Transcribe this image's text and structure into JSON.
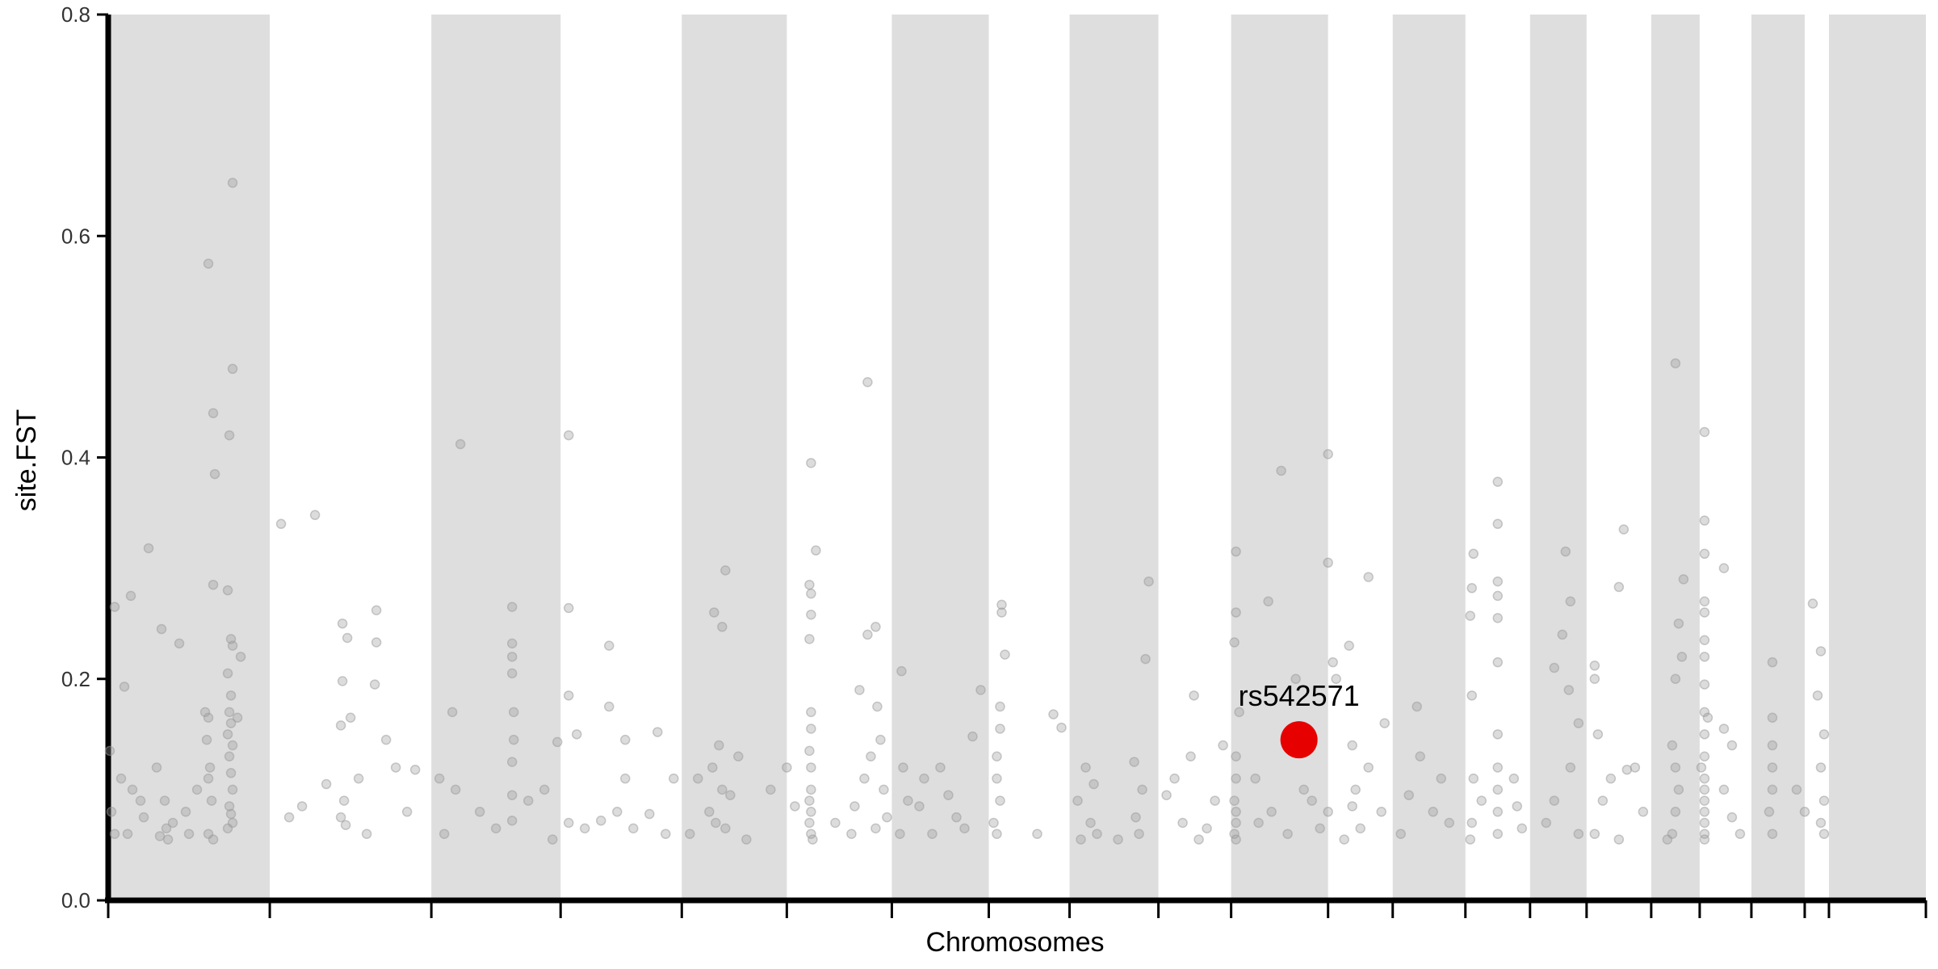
{
  "chart_data": {
    "type": "scatter",
    "title": "",
    "xlabel": "Chromosomes",
    "ylabel": "site.FST",
    "ylim": [
      0,
      0.8
    ],
    "yticks": [
      0.0,
      0.2,
      0.4,
      0.6,
      0.8
    ],
    "ytick_labels": [
      "0.0",
      "0.2",
      "0.4",
      "0.6",
      "0.8"
    ],
    "x_tick_labels_visible": false,
    "chromosome_band_colors": [
      "#dedede",
      "#ffffff"
    ],
    "point_color": "#9a9a9a",
    "point_opacity": 0.35,
    "highlight_color": "#e60000",
    "chromosome_bounds": [
      0,
      1.0,
      2.0,
      2.8,
      3.55,
      4.2,
      4.85,
      5.45,
      5.95,
      6.5,
      6.95,
      7.55,
      7.95,
      8.4,
      8.8,
      9.15,
      9.55,
      9.85,
      10.17,
      10.5,
      10.65,
      11.25
    ],
    "points": [
      {
        "x": 0.62,
        "y": 0.575
      },
      {
        "x": 0.65,
        "y": 0.44
      },
      {
        "x": 0.66,
        "y": 0.385
      },
      {
        "x": 0.65,
        "y": 0.285
      },
      {
        "x": 0.77,
        "y": 0.648
      },
      {
        "x": 0.77,
        "y": 0.48
      },
      {
        "x": 0.75,
        "y": 0.42
      },
      {
        "x": 0.74,
        "y": 0.28
      },
      {
        "x": 0.76,
        "y": 0.236
      },
      {
        "x": 0.77,
        "y": 0.23
      },
      {
        "x": 0.74,
        "y": 0.205
      },
      {
        "x": 0.76,
        "y": 0.185
      },
      {
        "x": 0.6,
        "y": 0.17
      },
      {
        "x": 0.75,
        "y": 0.17
      },
      {
        "x": 0.62,
        "y": 0.165
      },
      {
        "x": 0.76,
        "y": 0.16
      },
      {
        "x": 0.74,
        "y": 0.15
      },
      {
        "x": 0.61,
        "y": 0.145
      },
      {
        "x": 0.77,
        "y": 0.14
      },
      {
        "x": 0.75,
        "y": 0.13
      },
      {
        "x": 0.63,
        "y": 0.12
      },
      {
        "x": 0.76,
        "y": 0.115
      },
      {
        "x": 0.62,
        "y": 0.11
      },
      {
        "x": 0.77,
        "y": 0.1
      },
      {
        "x": 0.64,
        "y": 0.09
      },
      {
        "x": 0.75,
        "y": 0.085
      },
      {
        "x": 0.76,
        "y": 0.078
      },
      {
        "x": 0.77,
        "y": 0.07
      },
      {
        "x": 0.74,
        "y": 0.065
      },
      {
        "x": 0.62,
        "y": 0.06
      },
      {
        "x": 0.65,
        "y": 0.055
      },
      {
        "x": 0.8,
        "y": 0.165
      },
      {
        "x": 0.82,
        "y": 0.22
      },
      {
        "x": 0.25,
        "y": 0.318
      },
      {
        "x": 0.14,
        "y": 0.275
      },
      {
        "x": 0.04,
        "y": 0.265
      },
      {
        "x": 0.33,
        "y": 0.245
      },
      {
        "x": 0.44,
        "y": 0.232
      },
      {
        "x": 0.1,
        "y": 0.193
      },
      {
        "x": 0.01,
        "y": 0.135
      },
      {
        "x": 0.08,
        "y": 0.11
      },
      {
        "x": 0.15,
        "y": 0.1
      },
      {
        "x": 0.2,
        "y": 0.09
      },
      {
        "x": 0.3,
        "y": 0.12
      },
      {
        "x": 0.4,
        "y": 0.07
      },
      {
        "x": 0.5,
        "y": 0.06
      },
      {
        "x": 0.02,
        "y": 0.08
      },
      {
        "x": 0.12,
        "y": 0.06
      },
      {
        "x": 0.22,
        "y": 0.075
      },
      {
        "x": 0.32,
        "y": 0.058
      },
      {
        "x": 0.35,
        "y": 0.09
      },
      {
        "x": 0.36,
        "y": 0.065
      },
      {
        "x": 0.37,
        "y": 0.055
      },
      {
        "x": 0.48,
        "y": 0.08
      },
      {
        "x": 0.55,
        "y": 0.1
      },
      {
        "x": 0.04,
        "y": 0.06
      },
      {
        "x": 1.07,
        "y": 0.34
      },
      {
        "x": 1.28,
        "y": 0.348
      },
      {
        "x": 1.45,
        "y": 0.25
      },
      {
        "x": 1.48,
        "y": 0.237
      },
      {
        "x": 1.45,
        "y": 0.198
      },
      {
        "x": 1.5,
        "y": 0.165
      },
      {
        "x": 1.44,
        "y": 0.158
      },
      {
        "x": 1.66,
        "y": 0.262
      },
      {
        "x": 1.66,
        "y": 0.233
      },
      {
        "x": 1.65,
        "y": 0.195
      },
      {
        "x": 1.72,
        "y": 0.145
      },
      {
        "x": 1.78,
        "y": 0.12
      },
      {
        "x": 1.46,
        "y": 0.09
      },
      {
        "x": 1.47,
        "y": 0.068
      },
      {
        "x": 1.44,
        "y": 0.075
      },
      {
        "x": 1.35,
        "y": 0.105
      },
      {
        "x": 1.55,
        "y": 0.11
      },
      {
        "x": 1.6,
        "y": 0.06
      },
      {
        "x": 1.85,
        "y": 0.08
      },
      {
        "x": 1.9,
        "y": 0.118
      },
      {
        "x": 1.12,
        "y": 0.075
      },
      {
        "x": 1.2,
        "y": 0.085
      },
      {
        "x": 2.18,
        "y": 0.412
      },
      {
        "x": 2.5,
        "y": 0.265
      },
      {
        "x": 2.5,
        "y": 0.232
      },
      {
        "x": 2.5,
        "y": 0.22
      },
      {
        "x": 2.5,
        "y": 0.205
      },
      {
        "x": 2.51,
        "y": 0.17
      },
      {
        "x": 2.51,
        "y": 0.145
      },
      {
        "x": 2.5,
        "y": 0.125
      },
      {
        "x": 2.13,
        "y": 0.17
      },
      {
        "x": 2.15,
        "y": 0.1
      },
      {
        "x": 2.05,
        "y": 0.11
      },
      {
        "x": 2.3,
        "y": 0.08
      },
      {
        "x": 2.4,
        "y": 0.065
      },
      {
        "x": 2.5,
        "y": 0.095
      },
      {
        "x": 2.5,
        "y": 0.072
      },
      {
        "x": 2.6,
        "y": 0.09
      },
      {
        "x": 2.7,
        "y": 0.1
      },
      {
        "x": 2.78,
        "y": 0.143
      },
      {
        "x": 2.75,
        "y": 0.055
      },
      {
        "x": 2.08,
        "y": 0.06
      },
      {
        "x": 2.85,
        "y": 0.42
      },
      {
        "x": 2.85,
        "y": 0.264
      },
      {
        "x": 2.85,
        "y": 0.185
      },
      {
        "x": 2.9,
        "y": 0.15
      },
      {
        "x": 3.1,
        "y": 0.23
      },
      {
        "x": 3.1,
        "y": 0.175
      },
      {
        "x": 3.2,
        "y": 0.145
      },
      {
        "x": 3.2,
        "y": 0.11
      },
      {
        "x": 3.4,
        "y": 0.152
      },
      {
        "x": 2.85,
        "y": 0.07
      },
      {
        "x": 2.95,
        "y": 0.065
      },
      {
        "x": 3.05,
        "y": 0.072
      },
      {
        "x": 3.15,
        "y": 0.08
      },
      {
        "x": 3.25,
        "y": 0.065
      },
      {
        "x": 3.35,
        "y": 0.078
      },
      {
        "x": 3.45,
        "y": 0.06
      },
      {
        "x": 3.5,
        "y": 0.11
      },
      {
        "x": 3.75,
        "y": 0.26
      },
      {
        "x": 3.8,
        "y": 0.247
      },
      {
        "x": 3.82,
        "y": 0.298
      },
      {
        "x": 3.78,
        "y": 0.14
      },
      {
        "x": 3.74,
        "y": 0.12
      },
      {
        "x": 3.8,
        "y": 0.1
      },
      {
        "x": 3.85,
        "y": 0.095
      },
      {
        "x": 3.72,
        "y": 0.08
      },
      {
        "x": 3.76,
        "y": 0.07
      },
      {
        "x": 3.82,
        "y": 0.065
      },
      {
        "x": 3.65,
        "y": 0.11
      },
      {
        "x": 3.9,
        "y": 0.13
      },
      {
        "x": 3.6,
        "y": 0.06
      },
      {
        "x": 3.95,
        "y": 0.055
      },
      {
        "x": 4.35,
        "y": 0.395
      },
      {
        "x": 4.38,
        "y": 0.316
      },
      {
        "x": 4.34,
        "y": 0.285
      },
      {
        "x": 4.35,
        "y": 0.277
      },
      {
        "x": 4.35,
        "y": 0.258
      },
      {
        "x": 4.34,
        "y": 0.236
      },
      {
        "x": 4.35,
        "y": 0.17
      },
      {
        "x": 4.35,
        "y": 0.155
      },
      {
        "x": 4.34,
        "y": 0.135
      },
      {
        "x": 4.35,
        "y": 0.12
      },
      {
        "x": 4.35,
        "y": 0.1
      },
      {
        "x": 4.34,
        "y": 0.09
      },
      {
        "x": 4.35,
        "y": 0.08
      },
      {
        "x": 4.34,
        "y": 0.07
      },
      {
        "x": 4.35,
        "y": 0.06
      },
      {
        "x": 4.36,
        "y": 0.055
      },
      {
        "x": 4.2,
        "y": 0.12
      },
      {
        "x": 4.25,
        "y": 0.085
      },
      {
        "x": 4.1,
        "y": 0.1
      },
      {
        "x": 4.5,
        "y": 0.07
      },
      {
        "x": 4.7,
        "y": 0.468
      },
      {
        "x": 4.75,
        "y": 0.247
      },
      {
        "x": 4.7,
        "y": 0.24
      },
      {
        "x": 4.76,
        "y": 0.175
      },
      {
        "x": 4.65,
        "y": 0.19
      },
      {
        "x": 4.78,
        "y": 0.145
      },
      {
        "x": 4.72,
        "y": 0.13
      },
      {
        "x": 4.68,
        "y": 0.11
      },
      {
        "x": 4.8,
        "y": 0.1
      },
      {
        "x": 4.62,
        "y": 0.085
      },
      {
        "x": 4.82,
        "y": 0.075
      },
      {
        "x": 4.6,
        "y": 0.06
      },
      {
        "x": 4.75,
        "y": 0.065
      },
      {
        "x": 4.91,
        "y": 0.207
      },
      {
        "x": 4.92,
        "y": 0.12
      },
      {
        "x": 4.95,
        "y": 0.09
      },
      {
        "x": 5.02,
        "y": 0.085
      },
      {
        "x": 5.05,
        "y": 0.11
      },
      {
        "x": 5.15,
        "y": 0.12
      },
      {
        "x": 5.25,
        "y": 0.075
      },
      {
        "x": 5.35,
        "y": 0.148
      },
      {
        "x": 5.4,
        "y": 0.19
      },
      {
        "x": 5.3,
        "y": 0.065
      },
      {
        "x": 5.2,
        "y": 0.095
      },
      {
        "x": 5.1,
        "y": 0.06
      },
      {
        "x": 4.9,
        "y": 0.06
      },
      {
        "x": 5.53,
        "y": 0.267
      },
      {
        "x": 5.53,
        "y": 0.26
      },
      {
        "x": 5.55,
        "y": 0.222
      },
      {
        "x": 5.52,
        "y": 0.175
      },
      {
        "x": 5.52,
        "y": 0.155
      },
      {
        "x": 5.5,
        "y": 0.13
      },
      {
        "x": 5.5,
        "y": 0.11
      },
      {
        "x": 5.52,
        "y": 0.09
      },
      {
        "x": 5.48,
        "y": 0.07
      },
      {
        "x": 5.5,
        "y": 0.06
      },
      {
        "x": 5.75,
        "y": 0.06
      },
      {
        "x": 5.85,
        "y": 0.168
      },
      {
        "x": 5.9,
        "y": 0.156
      },
      {
        "x": 6.0,
        "y": 0.09
      },
      {
        "x": 6.05,
        "y": 0.12
      },
      {
        "x": 6.08,
        "y": 0.07
      },
      {
        "x": 6.1,
        "y": 0.105
      },
      {
        "x": 6.02,
        "y": 0.055
      },
      {
        "x": 6.12,
        "y": 0.06
      },
      {
        "x": 6.35,
        "y": 0.125
      },
      {
        "x": 6.4,
        "y": 0.1
      },
      {
        "x": 6.42,
        "y": 0.218
      },
      {
        "x": 6.44,
        "y": 0.288
      },
      {
        "x": 6.36,
        "y": 0.075
      },
      {
        "x": 6.38,
        "y": 0.06
      },
      {
        "x": 6.25,
        "y": 0.055
      },
      {
        "x": 6.55,
        "y": 0.095
      },
      {
        "x": 6.65,
        "y": 0.07
      },
      {
        "x": 6.7,
        "y": 0.13
      },
      {
        "x": 6.72,
        "y": 0.185
      },
      {
        "x": 6.8,
        "y": 0.065
      },
      {
        "x": 6.85,
        "y": 0.09
      },
      {
        "x": 6.9,
        "y": 0.14
      },
      {
        "x": 6.75,
        "y": 0.055
      },
      {
        "x": 6.6,
        "y": 0.11
      },
      {
        "x": 6.98,
        "y": 0.315
      },
      {
        "x": 6.98,
        "y": 0.26
      },
      {
        "x": 6.97,
        "y": 0.233
      },
      {
        "x": 7.0,
        "y": 0.17
      },
      {
        "x": 6.98,
        "y": 0.13
      },
      {
        "x": 6.98,
        "y": 0.11
      },
      {
        "x": 6.97,
        "y": 0.09
      },
      {
        "x": 6.98,
        "y": 0.08
      },
      {
        "x": 6.98,
        "y": 0.07
      },
      {
        "x": 6.97,
        "y": 0.06
      },
      {
        "x": 6.98,
        "y": 0.055
      },
      {
        "x": 7.18,
        "y": 0.27
      },
      {
        "x": 7.26,
        "y": 0.388
      },
      {
        "x": 7.35,
        "y": 0.2
      },
      {
        "x": 7.4,
        "y": 0.1
      },
      {
        "x": 7.45,
        "y": 0.09
      },
      {
        "x": 7.2,
        "y": 0.08
      },
      {
        "x": 7.3,
        "y": 0.06
      },
      {
        "x": 7.5,
        "y": 0.065
      },
      {
        "x": 7.55,
        "y": 0.305
      },
      {
        "x": 7.55,
        "y": 0.403
      },
      {
        "x": 7.58,
        "y": 0.215
      },
      {
        "x": 7.6,
        "y": 0.2
      },
      {
        "x": 7.55,
        "y": 0.08
      },
      {
        "x": 7.1,
        "y": 0.11
      },
      {
        "x": 7.12,
        "y": 0.07
      },
      {
        "x": 7.68,
        "y": 0.23
      },
      {
        "x": 7.7,
        "y": 0.14
      },
      {
        "x": 7.72,
        "y": 0.1
      },
      {
        "x": 7.7,
        "y": 0.085
      },
      {
        "x": 7.75,
        "y": 0.065
      },
      {
        "x": 7.8,
        "y": 0.292
      },
      {
        "x": 7.8,
        "y": 0.12
      },
      {
        "x": 7.9,
        "y": 0.16
      },
      {
        "x": 7.88,
        "y": 0.08
      },
      {
        "x": 7.65,
        "y": 0.055
      },
      {
        "x": 8.1,
        "y": 0.175
      },
      {
        "x": 8.12,
        "y": 0.13
      },
      {
        "x": 8.05,
        "y": 0.095
      },
      {
        "x": 8.2,
        "y": 0.08
      },
      {
        "x": 8.0,
        "y": 0.06
      },
      {
        "x": 8.3,
        "y": 0.07
      },
      {
        "x": 8.25,
        "y": 0.11
      },
      {
        "x": 8.45,
        "y": 0.313
      },
      {
        "x": 8.44,
        "y": 0.282
      },
      {
        "x": 8.43,
        "y": 0.257
      },
      {
        "x": 8.44,
        "y": 0.185
      },
      {
        "x": 8.45,
        "y": 0.11
      },
      {
        "x": 8.5,
        "y": 0.09
      },
      {
        "x": 8.44,
        "y": 0.07
      },
      {
        "x": 8.43,
        "y": 0.055
      },
      {
        "x": 8.6,
        "y": 0.378
      },
      {
        "x": 8.6,
        "y": 0.34
      },
      {
        "x": 8.6,
        "y": 0.288
      },
      {
        "x": 8.6,
        "y": 0.275
      },
      {
        "x": 8.6,
        "y": 0.255
      },
      {
        "x": 8.6,
        "y": 0.215
      },
      {
        "x": 8.6,
        "y": 0.15
      },
      {
        "x": 8.6,
        "y": 0.12
      },
      {
        "x": 8.6,
        "y": 0.1
      },
      {
        "x": 8.6,
        "y": 0.08
      },
      {
        "x": 8.6,
        "y": 0.06
      },
      {
        "x": 8.7,
        "y": 0.11
      },
      {
        "x": 8.72,
        "y": 0.085
      },
      {
        "x": 8.75,
        "y": 0.065
      },
      {
        "x": 8.95,
        "y": 0.21
      },
      {
        "x": 9.0,
        "y": 0.24
      },
      {
        "x": 9.02,
        "y": 0.315
      },
      {
        "x": 9.05,
        "y": 0.27
      },
      {
        "x": 9.04,
        "y": 0.19
      },
      {
        "x": 9.1,
        "y": 0.16
      },
      {
        "x": 9.05,
        "y": 0.12
      },
      {
        "x": 8.95,
        "y": 0.09
      },
      {
        "x": 8.9,
        "y": 0.07
      },
      {
        "x": 9.1,
        "y": 0.06
      },
      {
        "x": 9.2,
        "y": 0.212
      },
      {
        "x": 9.2,
        "y": 0.2
      },
      {
        "x": 9.22,
        "y": 0.15
      },
      {
        "x": 9.35,
        "y": 0.283
      },
      {
        "x": 9.38,
        "y": 0.335
      },
      {
        "x": 9.3,
        "y": 0.11
      },
      {
        "x": 9.25,
        "y": 0.09
      },
      {
        "x": 9.4,
        "y": 0.118
      },
      {
        "x": 9.45,
        "y": 0.12
      },
      {
        "x": 9.5,
        "y": 0.08
      },
      {
        "x": 9.2,
        "y": 0.06
      },
      {
        "x": 9.35,
        "y": 0.055
      },
      {
        "x": 9.7,
        "y": 0.485
      },
      {
        "x": 9.75,
        "y": 0.29
      },
      {
        "x": 9.72,
        "y": 0.25
      },
      {
        "x": 9.74,
        "y": 0.22
      },
      {
        "x": 9.7,
        "y": 0.2
      },
      {
        "x": 9.68,
        "y": 0.14
      },
      {
        "x": 9.7,
        "y": 0.12
      },
      {
        "x": 9.72,
        "y": 0.1
      },
      {
        "x": 9.7,
        "y": 0.08
      },
      {
        "x": 9.68,
        "y": 0.06
      },
      {
        "x": 9.65,
        "y": 0.055
      },
      {
        "x": 9.88,
        "y": 0.423
      },
      {
        "x": 9.88,
        "y": 0.343
      },
      {
        "x": 9.88,
        "y": 0.313
      },
      {
        "x": 9.88,
        "y": 0.27
      },
      {
        "x": 9.88,
        "y": 0.26
      },
      {
        "x": 9.88,
        "y": 0.235
      },
      {
        "x": 9.88,
        "y": 0.22
      },
      {
        "x": 9.88,
        "y": 0.195
      },
      {
        "x": 9.88,
        "y": 0.17
      },
      {
        "x": 9.88,
        "y": 0.15
      },
      {
        "x": 9.88,
        "y": 0.13
      },
      {
        "x": 9.88,
        "y": 0.11
      },
      {
        "x": 9.88,
        "y": 0.1
      },
      {
        "x": 9.88,
        "y": 0.09
      },
      {
        "x": 9.88,
        "y": 0.08
      },
      {
        "x": 9.88,
        "y": 0.07
      },
      {
        "x": 9.88,
        "y": 0.06
      },
      {
        "x": 9.88,
        "y": 0.055
      },
      {
        "x": 9.9,
        "y": 0.165
      },
      {
        "x": 9.86,
        "y": 0.12
      },
      {
        "x": 10.0,
        "y": 0.3
      },
      {
        "x": 10.0,
        "y": 0.155
      },
      {
        "x": 10.05,
        "y": 0.14
      },
      {
        "x": 10.0,
        "y": 0.1
      },
      {
        "x": 10.05,
        "y": 0.075
      },
      {
        "x": 10.1,
        "y": 0.06
      },
      {
        "x": 10.3,
        "y": 0.215
      },
      {
        "x": 10.3,
        "y": 0.165
      },
      {
        "x": 10.3,
        "y": 0.14
      },
      {
        "x": 10.3,
        "y": 0.12
      },
      {
        "x": 10.3,
        "y": 0.1
      },
      {
        "x": 10.28,
        "y": 0.08
      },
      {
        "x": 10.3,
        "y": 0.06
      },
      {
        "x": 10.45,
        "y": 0.1
      },
      {
        "x": 10.5,
        "y": 0.08
      },
      {
        "x": 10.55,
        "y": 0.268
      },
      {
        "x": 10.6,
        "y": 0.225
      },
      {
        "x": 10.58,
        "y": 0.185
      },
      {
        "x": 10.62,
        "y": 0.15
      },
      {
        "x": 10.6,
        "y": 0.12
      },
      {
        "x": 10.62,
        "y": 0.09
      },
      {
        "x": 10.6,
        "y": 0.07
      },
      {
        "x": 10.62,
        "y": 0.06
      }
    ],
    "highlight": {
      "label": "rs542571",
      "x": 7.37,
      "y": 0.145
    }
  }
}
